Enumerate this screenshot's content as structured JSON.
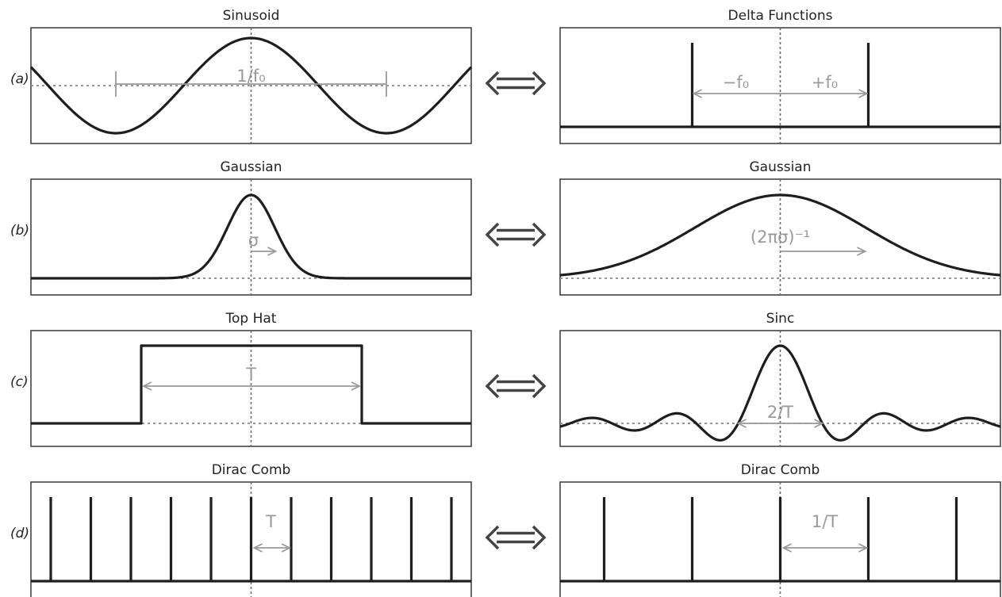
{
  "rows": [
    {
      "label": "(a)",
      "left": {
        "title": "Sinusoid",
        "kind": "cosine",
        "annotation": "1/f₀"
      },
      "right": {
        "title": "Delta Functions",
        "kind": "deltas",
        "annotation_left": "−f₀",
        "annotation_right": "+f₀"
      }
    },
    {
      "label": "(b)",
      "left": {
        "title": "Gaussian",
        "kind": "gaussian-narrow",
        "annotation": "σ"
      },
      "right": {
        "title": "Gaussian",
        "kind": "gaussian-wide",
        "annotation": "(2πσ)⁻¹"
      }
    },
    {
      "label": "(c)",
      "left": {
        "title": "Top Hat",
        "kind": "tophat",
        "annotation": "T"
      },
      "right": {
        "title": "Sinc",
        "kind": "sinc",
        "annotation": "2/T"
      }
    },
    {
      "label": "(d)",
      "left": {
        "title": "Dirac Comb",
        "kind": "comb-dense",
        "annotation": "T"
      },
      "right": {
        "title": "Dirac Comb",
        "kind": "comb-sparse",
        "annotation": "1/T"
      }
    }
  ],
  "equivalence_symbol": "⟺"
}
